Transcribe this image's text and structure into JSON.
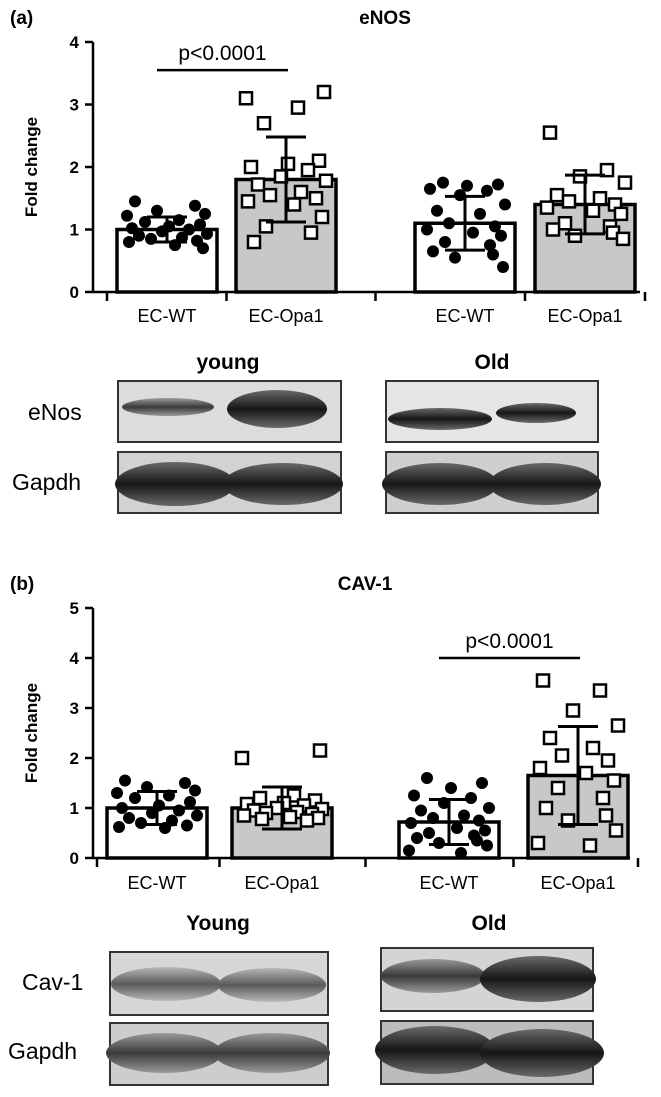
{
  "panels": [
    {
      "panel_label": "(a)",
      "blots": {
        "groups": [
          "young",
          "Old"
        ],
        "rows": [
          "eNos",
          "Gapdh"
        ]
      }
    },
    {
      "panel_label": "(b)",
      "blots": {
        "groups": [
          "Young",
          "Old"
        ],
        "rows": [
          "Cav-1",
          "Gapdh"
        ]
      }
    }
  ],
  "chart_data": [
    {
      "type": "bar",
      "title": "eNOS",
      "xlabel": "",
      "ylabel": "Fold change",
      "ylim": [
        0,
        4
      ],
      "yticks": [
        "0",
        "1",
        "2",
        "3",
        "4"
      ],
      "categories": [
        "EC-WT",
        "EC-Opa1",
        "EC-WT",
        "EC-Opa1"
      ],
      "bar_colors": [
        "#ffffff",
        "#c8c8c8",
        "#ffffff",
        "#c8c8c8"
      ],
      "marker_shapes": [
        "filled-circle",
        "open-square",
        "filled-circle",
        "open-square"
      ],
      "values": [
        1.0,
        1.8,
        1.1,
        1.4
      ],
      "sd": [
        0.2,
        0.68,
        0.43,
        0.47
      ],
      "points": [
        [
          1.45,
          1.38,
          1.3,
          1.25,
          1.22,
          1.15,
          1.12,
          1.08,
          1.05,
          1.02,
          1.0,
          0.97,
          0.93,
          0.9,
          0.87,
          0.85,
          0.82,
          0.8,
          0.75,
          0.7
        ],
        [
          3.2,
          3.1,
          2.95,
          2.7,
          2.1,
          2.05,
          2.0,
          1.95,
          1.85,
          1.78,
          1.72,
          1.6,
          1.55,
          1.5,
          1.45,
          1.4,
          1.2,
          1.05,
          0.95,
          0.8
        ],
        [
          1.75,
          1.72,
          1.7,
          1.65,
          1.62,
          1.55,
          1.4,
          1.3,
          1.25,
          1.1,
          1.05,
          1.0,
          0.95,
          0.9,
          0.8,
          0.75,
          0.65,
          0.6,
          0.55,
          0.4
        ],
        [
          2.55,
          1.95,
          1.85,
          1.75,
          1.55,
          1.5,
          1.45,
          1.4,
          1.35,
          1.3,
          1.25,
          1.1,
          1.05,
          1.0,
          0.95,
          0.9,
          0.85
        ]
      ],
      "annotations": [
        {
          "text": "p<0.0001",
          "between": [
            0,
            1
          ],
          "y": 3.55
        }
      ]
    },
    {
      "type": "bar",
      "title": "CAV-1",
      "xlabel": "",
      "ylabel": "Fold change",
      "ylim": [
        0,
        5
      ],
      "yticks": [
        "0",
        "1",
        "2",
        "3",
        "4",
        "5"
      ],
      "categories": [
        "EC-WT",
        "EC-Opa1",
        "EC-WT",
        "EC-Opa1"
      ],
      "bar_colors": [
        "#ffffff",
        "#c8c8c8",
        "#ffffff",
        "#c8c8c8"
      ],
      "marker_shapes": [
        "filled-circle",
        "open-square",
        "filled-circle",
        "open-square"
      ],
      "values": [
        1.0,
        1.0,
        0.72,
        1.65
      ],
      "sd": [
        0.33,
        0.42,
        0.45,
        0.98
      ],
      "points": [
        [
          1.55,
          1.5,
          1.42,
          1.35,
          1.3,
          1.25,
          1.2,
          1.12,
          1.05,
          1.0,
          0.95,
          0.9,
          0.85,
          0.8,
          0.75,
          0.7,
          0.65,
          0.62,
          0.6
        ],
        [
          2.15,
          2.0,
          1.25,
          1.2,
          1.15,
          1.1,
          1.08,
          1.05,
          1.0,
          0.98,
          0.95,
          0.92,
          0.9,
          0.88,
          0.85,
          0.82,
          0.8,
          0.78,
          0.75
        ],
        [
          1.6,
          1.5,
          1.4,
          1.25,
          1.2,
          1.1,
          1.0,
          0.95,
          0.85,
          0.8,
          0.75,
          0.7,
          0.6,
          0.55,
          0.5,
          0.45,
          0.4,
          0.35,
          0.3,
          0.25,
          0.15,
          0.1
        ],
        [
          3.55,
          3.35,
          2.95,
          2.65,
          2.4,
          2.2,
          2.05,
          1.95,
          1.8,
          1.7,
          1.55,
          1.4,
          1.2,
          1.0,
          0.85,
          0.75,
          0.55,
          0.3,
          0.25
        ]
      ],
      "annotations": [
        {
          "text": "p<0.0001",
          "between": [
            2,
            3
          ],
          "y": 4.0
        }
      ]
    }
  ]
}
